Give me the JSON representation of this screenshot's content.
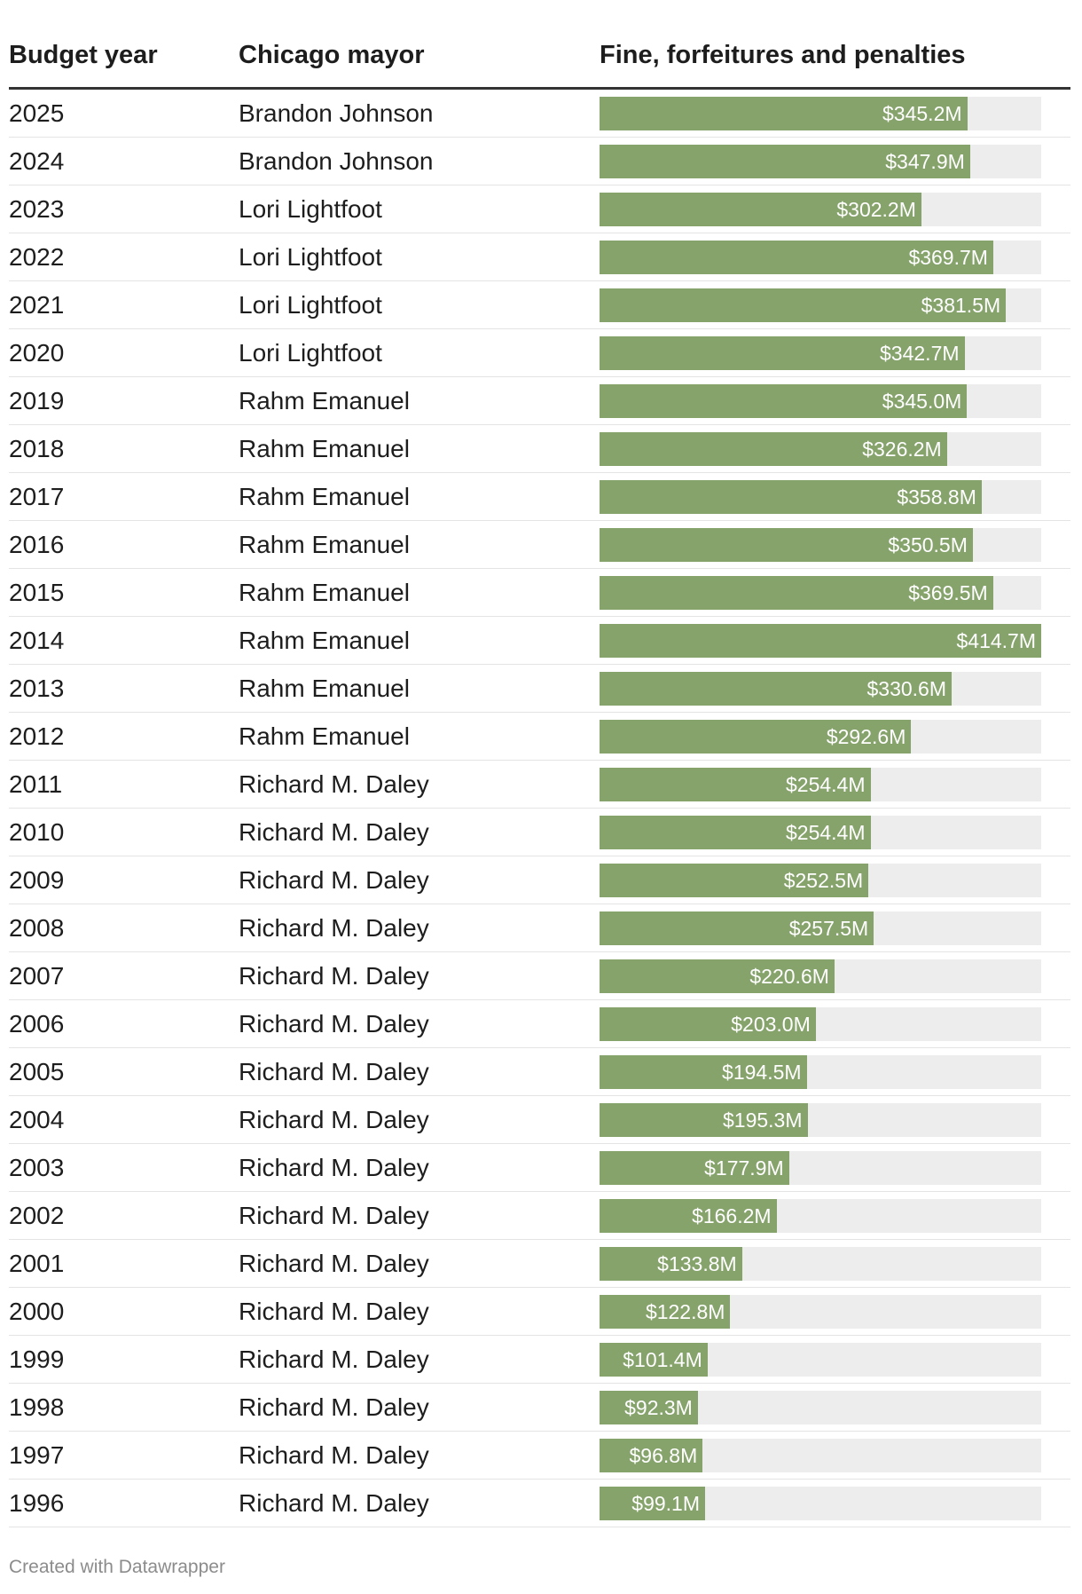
{
  "chart_data": {
    "type": "table",
    "columns": [
      "Budget year",
      "Chicago mayor",
      "Fine, forfeitures and penalties"
    ],
    "value_unit": "$M",
    "xlim": [
      0,
      414.7
    ],
    "rows": [
      {
        "year": "2025",
        "mayor": "Brandon Johnson",
        "value": 345.2,
        "label": "$345.2M"
      },
      {
        "year": "2024",
        "mayor": "Brandon Johnson",
        "value": 347.9,
        "label": "$347.9M"
      },
      {
        "year": "2023",
        "mayor": "Lori Lightfoot",
        "value": 302.2,
        "label": "$302.2M"
      },
      {
        "year": "2022",
        "mayor": "Lori Lightfoot",
        "value": 369.7,
        "label": "$369.7M"
      },
      {
        "year": "2021",
        "mayor": "Lori Lightfoot",
        "value": 381.5,
        "label": "$381.5M"
      },
      {
        "year": "2020",
        "mayor": "Lori Lightfoot",
        "value": 342.7,
        "label": "$342.7M"
      },
      {
        "year": "2019",
        "mayor": "Rahm Emanuel",
        "value": 345.0,
        "label": "$345.0M"
      },
      {
        "year": "2018",
        "mayor": "Rahm Emanuel",
        "value": 326.2,
        "label": "$326.2M"
      },
      {
        "year": "2017",
        "mayor": "Rahm Emanuel",
        "value": 358.8,
        "label": "$358.8M"
      },
      {
        "year": "2016",
        "mayor": "Rahm Emanuel",
        "value": 350.5,
        "label": "$350.5M"
      },
      {
        "year": "2015",
        "mayor": "Rahm Emanuel",
        "value": 369.5,
        "label": "$369.5M"
      },
      {
        "year": "2014",
        "mayor": "Rahm Emanuel",
        "value": 414.7,
        "label": "$414.7M"
      },
      {
        "year": "2013",
        "mayor": "Rahm Emanuel",
        "value": 330.6,
        "label": "$330.6M"
      },
      {
        "year": "2012",
        "mayor": "Rahm Emanuel",
        "value": 292.6,
        "label": "$292.6M"
      },
      {
        "year": "2011",
        "mayor": "Richard M. Daley",
        "value": 254.4,
        "label": "$254.4M"
      },
      {
        "year": "2010",
        "mayor": "Richard M. Daley",
        "value": 254.4,
        "label": "$254.4M"
      },
      {
        "year": "2009",
        "mayor": "Richard M. Daley",
        "value": 252.5,
        "label": "$252.5M"
      },
      {
        "year": "2008",
        "mayor": "Richard M. Daley",
        "value": 257.5,
        "label": "$257.5M"
      },
      {
        "year": "2007",
        "mayor": "Richard M. Daley",
        "value": 220.6,
        "label": "$220.6M"
      },
      {
        "year": "2006",
        "mayor": "Richard M. Daley",
        "value": 203.0,
        "label": "$203.0M"
      },
      {
        "year": "2005",
        "mayor": "Richard M. Daley",
        "value": 194.5,
        "label": "$194.5M"
      },
      {
        "year": "2004",
        "mayor": "Richard M. Daley",
        "value": 195.3,
        "label": "$195.3M"
      },
      {
        "year": "2003",
        "mayor": "Richard M. Daley",
        "value": 177.9,
        "label": "$177.9M"
      },
      {
        "year": "2002",
        "mayor": "Richard M. Daley",
        "value": 166.2,
        "label": "$166.2M"
      },
      {
        "year": "2001",
        "mayor": "Richard M. Daley",
        "value": 133.8,
        "label": "$133.8M"
      },
      {
        "year": "2000",
        "mayor": "Richard M. Daley",
        "value": 122.8,
        "label": "$122.8M"
      },
      {
        "year": "1999",
        "mayor": "Richard M. Daley",
        "value": 101.4,
        "label": "$101.4M"
      },
      {
        "year": "1998",
        "mayor": "Richard M. Daley",
        "value": 92.3,
        "label": "$92.3M"
      },
      {
        "year": "1997",
        "mayor": "Richard M. Daley",
        "value": 96.8,
        "label": "$96.8M"
      },
      {
        "year": "1996",
        "mayor": "Richard M. Daley",
        "value": 99.1,
        "label": "$99.1M"
      }
    ]
  },
  "colors": {
    "bar": "#86a36c",
    "track": "#ededed",
    "header_rule": "#333333",
    "row_rule": "#e4e4e4",
    "label": "#ffffff"
  },
  "footer": {
    "credit": "Created with Datawrapper"
  }
}
